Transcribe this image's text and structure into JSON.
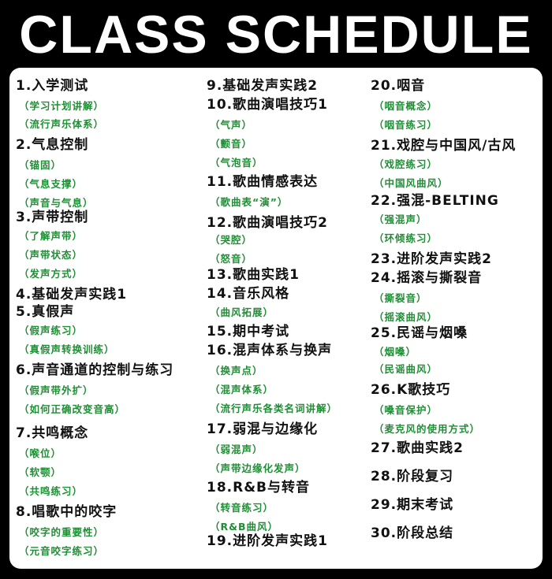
{
  "title": "CLASS SCHEDULE",
  "colors": {
    "background": "#000000",
    "card": "#ffffff",
    "lesson_text": "#111111",
    "sub_text": "#1e8f34"
  },
  "columns": [
    [
      {
        "kind": "lesson",
        "text": "1.入学测试"
      },
      {
        "kind": "sub",
        "text": "（学习计划讲解）"
      },
      {
        "kind": "sub",
        "text": "（流行声乐体系）"
      },
      {
        "kind": "lesson",
        "text": "2.气息控制"
      },
      {
        "kind": "sub",
        "text": "（锚固）"
      },
      {
        "kind": "sub",
        "text": "（气息支撑）"
      },
      {
        "kind": "sub",
        "text": "（声音与气息）"
      },
      {
        "kind": "lesson",
        "text": "3.声带控制"
      },
      {
        "kind": "sub",
        "text": "（了解声带）"
      },
      {
        "kind": "sub",
        "text": "（声带状态）"
      },
      {
        "kind": "sub",
        "text": "（发声方式）"
      },
      {
        "kind": "lesson",
        "text": "4.基础发声实践1"
      },
      {
        "kind": "lesson",
        "text": "5.真假声"
      },
      {
        "kind": "sub",
        "text": "（假声练习）"
      },
      {
        "kind": "sub",
        "text": "（真假声转换训练）"
      },
      {
        "kind": "lesson",
        "text": "6.声音通道的控制与练习"
      },
      {
        "kind": "sub",
        "text": "（假声带外扩）"
      },
      {
        "kind": "sub",
        "text": "（如何正确改变音高）"
      },
      {
        "kind": "lesson",
        "text": "7.共鸣概念"
      },
      {
        "kind": "sub",
        "text": "（喉位）"
      },
      {
        "kind": "sub",
        "text": "（软颚）"
      },
      {
        "kind": "sub",
        "text": "（共鸣练习）"
      },
      {
        "kind": "lesson",
        "text": "8.唱歌中的咬字"
      },
      {
        "kind": "sub",
        "text": "（咬字的重要性）"
      },
      {
        "kind": "sub",
        "text": "（元音咬字练习）"
      }
    ],
    [
      {
        "kind": "lesson",
        "text": "9.基础发声实践2"
      },
      {
        "kind": "lesson",
        "text": "10.歌曲演唱技巧1"
      },
      {
        "kind": "sub",
        "text": "（气声）"
      },
      {
        "kind": "sub",
        "text": "（颤音）"
      },
      {
        "kind": "sub",
        "text": "（气泡音）"
      },
      {
        "kind": "lesson",
        "text": "11.歌曲情感表达"
      },
      {
        "kind": "sub",
        "text": "（歌曲表“演”）"
      },
      {
        "kind": "lesson",
        "text": "12.歌曲演唱技巧2"
      },
      {
        "kind": "sub",
        "text": "（哭腔）"
      },
      {
        "kind": "sub",
        "text": "（怒音）"
      },
      {
        "kind": "lesson",
        "text": "13.歌曲实践1"
      },
      {
        "kind": "lesson",
        "text": "14.音乐风格"
      },
      {
        "kind": "sub",
        "text": "（曲风拓展）"
      },
      {
        "kind": "lesson",
        "text": "15.期中考试"
      },
      {
        "kind": "lesson",
        "text": "16.混声体系与换声"
      },
      {
        "kind": "sub",
        "text": "（换声点）"
      },
      {
        "kind": "sub",
        "text": "（混声体系）"
      },
      {
        "kind": "sub",
        "text": "（流行声乐各类名词讲解）"
      },
      {
        "kind": "lesson",
        "text": "17.弱混与边缘化"
      },
      {
        "kind": "sub",
        "text": "（弱混声）"
      },
      {
        "kind": "sub",
        "text": "（声带边缘化发声）"
      },
      {
        "kind": "lesson",
        "text": "18.R&B与转音"
      },
      {
        "kind": "sub",
        "text": "（转音练习）"
      },
      {
        "kind": "sub",
        "text": "（R&B曲风）"
      },
      {
        "kind": "lesson",
        "text": "19.进阶发声实践1"
      }
    ],
    [
      {
        "kind": "lesson",
        "text": "20.咽音"
      },
      {
        "kind": "sub",
        "text": "（咽音概念）"
      },
      {
        "kind": "sub",
        "text": "（咽音练习）"
      },
      {
        "kind": "lesson",
        "text": "21.戏腔与中国风/古风"
      },
      {
        "kind": "sub",
        "text": "（戏腔练习）"
      },
      {
        "kind": "sub",
        "text": "（中国风曲风）"
      },
      {
        "kind": "lesson",
        "text": "22.强混-BELTING"
      },
      {
        "kind": "sub",
        "text": "（强混声）"
      },
      {
        "kind": "sub",
        "text": "（环倾练习）"
      },
      {
        "kind": "lesson",
        "text": "23.进阶发声实践2"
      },
      {
        "kind": "lesson",
        "text": "24.摇滚与撕裂音"
      },
      {
        "kind": "sub",
        "text": "（撕裂音）"
      },
      {
        "kind": "sub",
        "text": "（摇滚曲风）"
      },
      {
        "kind": "lesson",
        "text": "25.民谣与烟嗓"
      },
      {
        "kind": "sub",
        "text": "（烟嗓）"
      },
      {
        "kind": "sub",
        "text": "（民谣曲风）"
      },
      {
        "kind": "lesson",
        "text": "26.K歌技巧"
      },
      {
        "kind": "sub",
        "text": "（嗓音保护）"
      },
      {
        "kind": "sub",
        "text": "（麦克风的使用方式）"
      },
      {
        "kind": "lesson",
        "text": "27.歌曲实践2"
      },
      {
        "kind": "lesson",
        "text": "28.阶段复习"
      },
      {
        "kind": "lesson",
        "text": "29.期末考试"
      },
      {
        "kind": "lesson",
        "text": "30.阶段总结"
      }
    ]
  ]
}
